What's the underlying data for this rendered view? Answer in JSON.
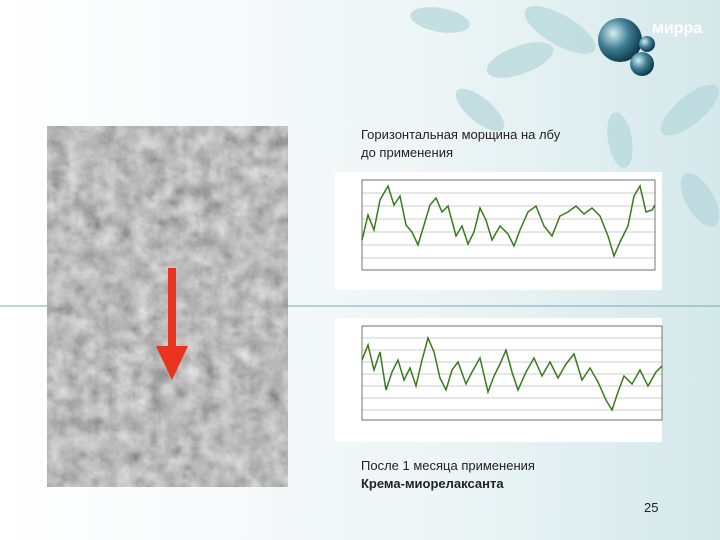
{
  "logo": "мирра",
  "caption_before": {
    "line1": "Горизонтальная морщина на лбу",
    "line2": "до применения"
  },
  "caption_after": {
    "line1": "После 1 месяца применения",
    "line2": "Крема-миорелаксанта"
  },
  "page_number": "25"
}
